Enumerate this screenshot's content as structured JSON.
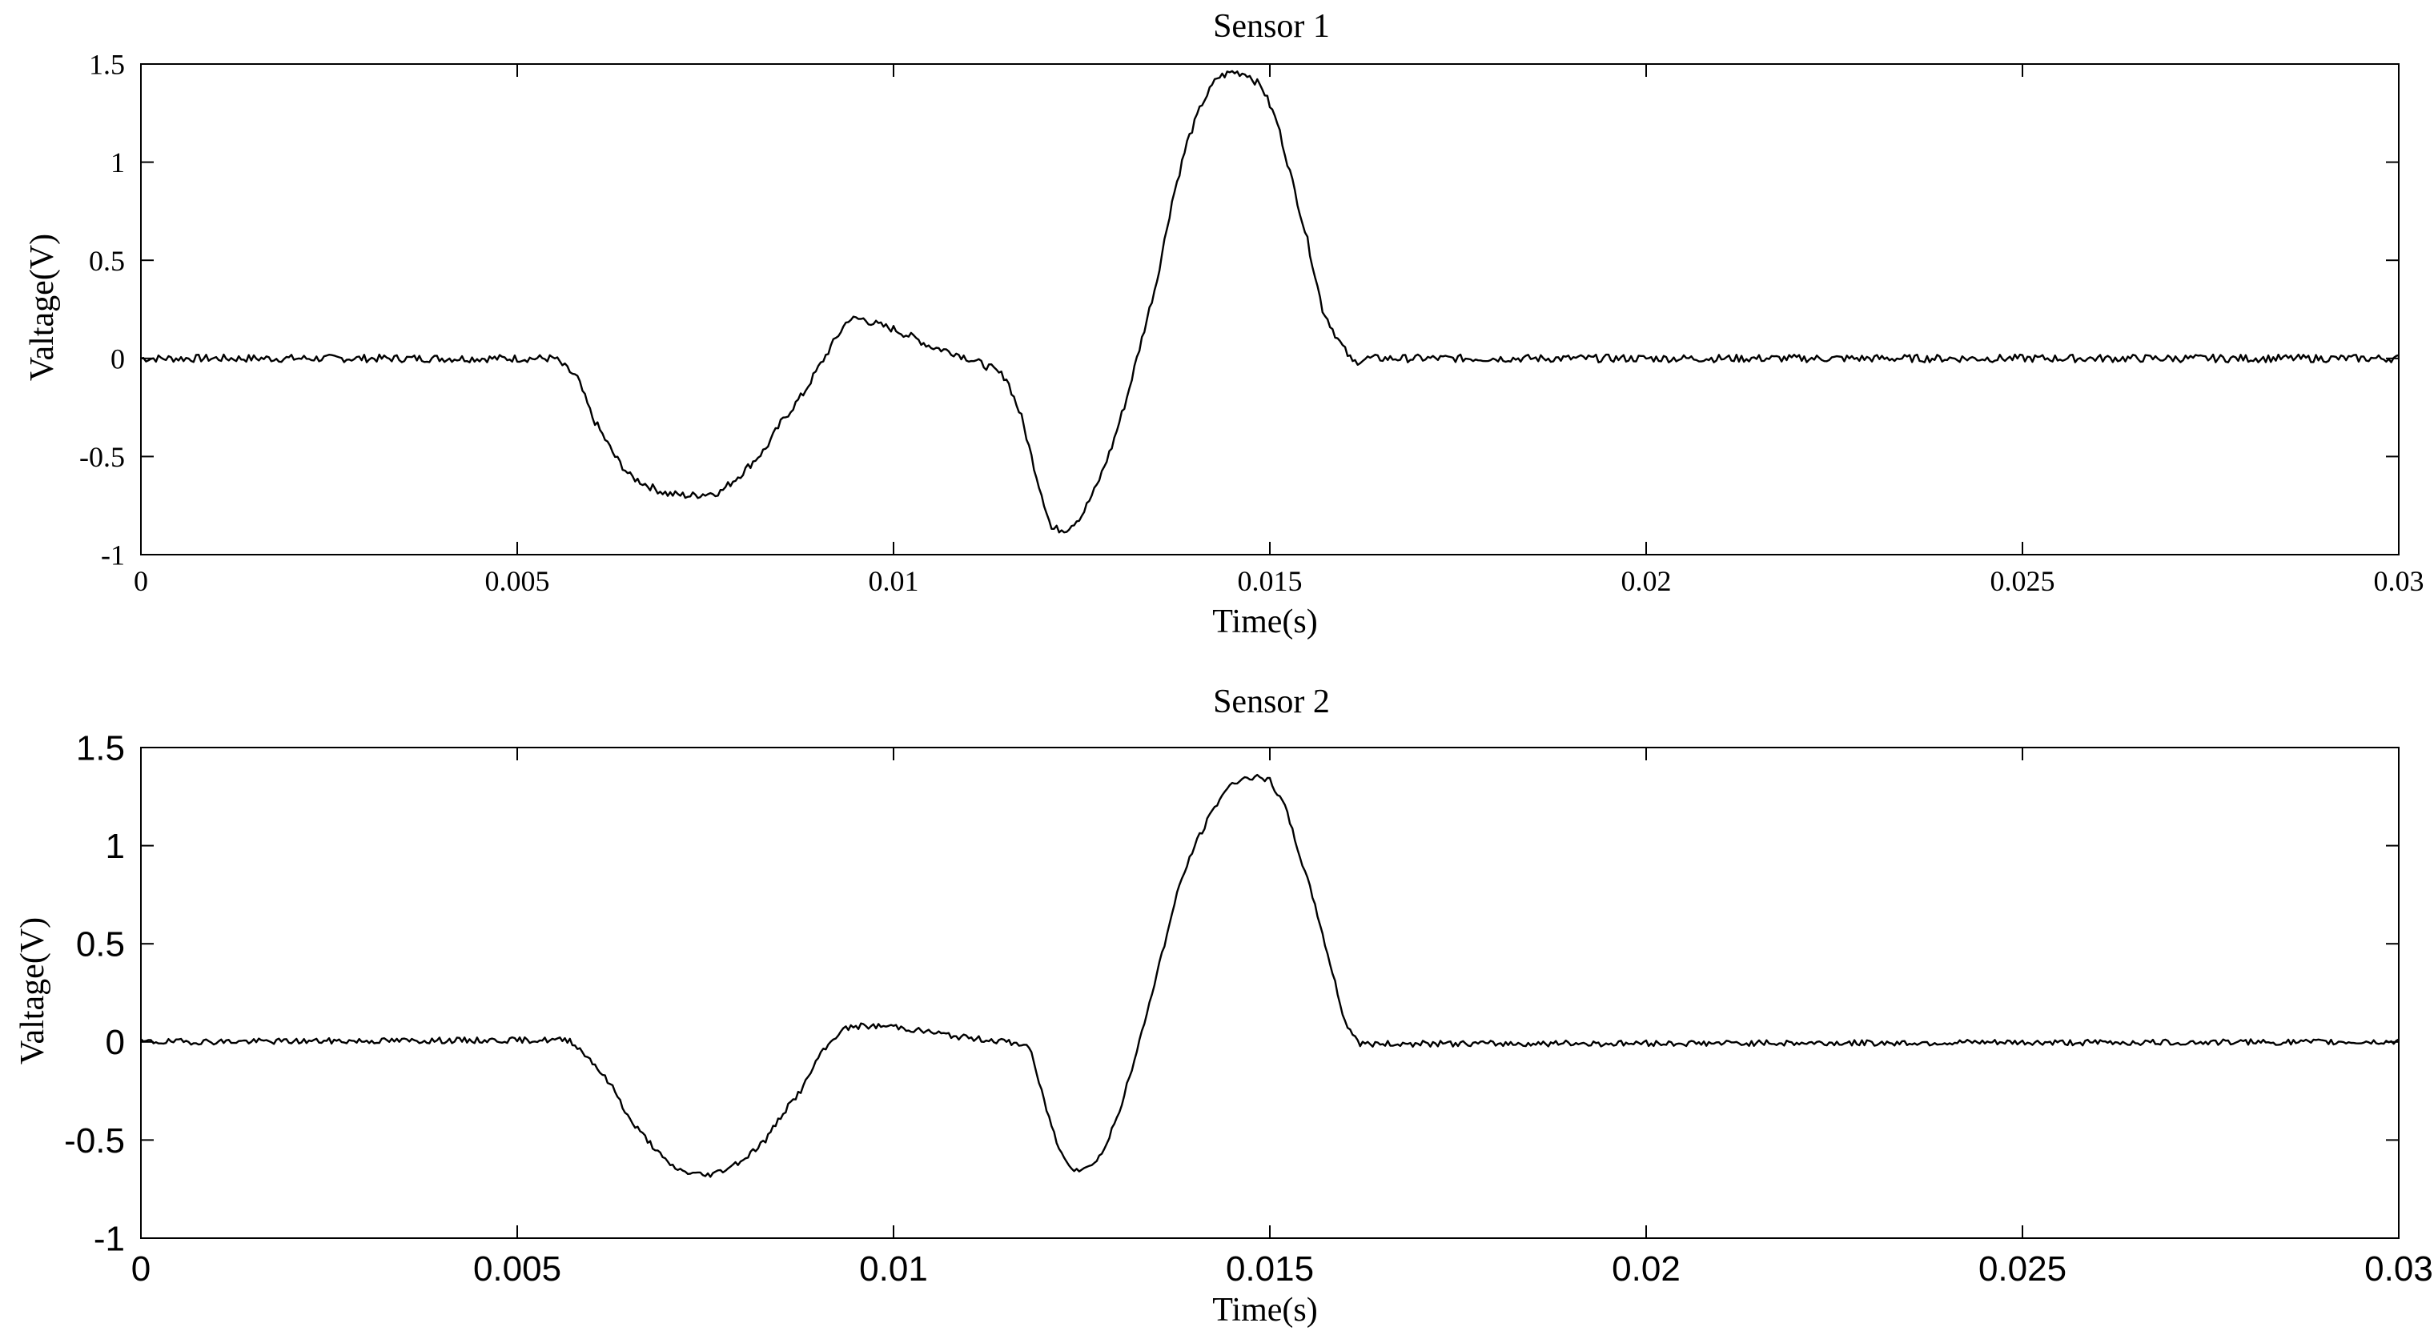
{
  "colors": {
    "line": "#000000",
    "axes": "#000000",
    "background": "#ffffff"
  },
  "chart_data": [
    {
      "type": "line",
      "title": "Sensor 1",
      "xlabel": "Time(s)",
      "ylabel": "Valtage(V)",
      "xlim": [
        0,
        0.03
      ],
      "ylim": [
        -1,
        1.5
      ],
      "xticks": [
        0,
        0.005,
        0.01,
        0.015,
        0.02,
        0.025,
        0.03
      ],
      "xtick_labels": [
        "0",
        "0.005",
        "0.01",
        "0.015",
        "0.02",
        "0.025",
        "0.03"
      ],
      "yticks": [
        -1,
        -0.5,
        0,
        0.5,
        1,
        1.5
      ],
      "ytick_labels": [
        "-1",
        "-0.5",
        "0",
        "0.5",
        "1",
        "1.5"
      ],
      "grid": false,
      "legend": "none",
      "noise_amplitude": 0.02,
      "series": [
        {
          "x": [
            0,
            0.0055,
            0.0058,
            0.006,
            0.0063,
            0.0065,
            0.0068,
            0.007,
            0.0073,
            0.0075,
            0.0077,
            0.008,
            0.0083,
            0.0085,
            0.0088,
            0.009,
            0.0092,
            0.0094,
            0.0096,
            0.0098,
            0.01,
            0.0103,
            0.0105,
            0.0108,
            0.011,
            0.0113,
            0.0115,
            0.0117,
            0.0119,
            0.0121,
            0.0123,
            0.0125,
            0.0127,
            0.0129,
            0.0131,
            0.0133,
            0.0135,
            0.0137,
            0.0139,
            0.0141,
            0.0143,
            0.0145,
            0.0147,
            0.0149,
            0.0151,
            0.0153,
            0.0155,
            0.0157,
            0.0159,
            0.0161,
            0.0163,
            0.03
          ],
          "y": [
            0,
            0,
            -0.1,
            -0.3,
            -0.5,
            -0.6,
            -0.66,
            -0.69,
            -0.7,
            -0.69,
            -0.68,
            -0.58,
            -0.46,
            -0.33,
            -0.18,
            -0.05,
            0.08,
            0.2,
            0.2,
            0.17,
            0.15,
            0.1,
            0.06,
            0.03,
            0,
            -0.05,
            -0.1,
            -0.3,
            -0.6,
            -0.87,
            -0.87,
            -0.8,
            -0.65,
            -0.45,
            -0.2,
            0.1,
            0.4,
            0.8,
            1.1,
            1.3,
            1.43,
            1.46,
            1.45,
            1.38,
            1.2,
            0.9,
            0.6,
            0.25,
            0.1,
            -0.02,
            0,
            0
          ]
        }
      ]
    },
    {
      "type": "line",
      "title": "Sensor 2",
      "xlabel": "Time(s)",
      "ylabel": "Valtage(V)",
      "xlim": [
        0,
        0.03
      ],
      "ylim": [
        -1,
        1.5
      ],
      "xticks": [
        0,
        0.005,
        0.01,
        0.015,
        0.02,
        0.025,
        0.03
      ],
      "xtick_labels": [
        "0",
        "0.005",
        "0.01",
        "0.015",
        "0.02",
        "0.025",
        "0.03"
      ],
      "yticks": [
        -1,
        -0.5,
        0,
        0.5,
        1,
        1.5
      ],
      "ytick_labels": [
        "-1",
        "-0.5",
        "0",
        "0.5",
        "1",
        "1.5"
      ],
      "grid": false,
      "legend": "none",
      "noise_amplitude": 0.015,
      "series": [
        {
          "x": [
            0,
            0.0057,
            0.006,
            0.0063,
            0.0065,
            0.0068,
            0.007,
            0.0072,
            0.0075,
            0.0077,
            0.008,
            0.0083,
            0.0085,
            0.0088,
            0.009,
            0.0093,
            0.0095,
            0.0098,
            0.01,
            0.0103,
            0.0105,
            0.0108,
            0.011,
            0.0113,
            0.0115,
            0.0118,
            0.012,
            0.0122,
            0.0124,
            0.0126,
            0.0128,
            0.013,
            0.0132,
            0.0134,
            0.0136,
            0.0138,
            0.014,
            0.0142,
            0.0144,
            0.0146,
            0.0148,
            0.015,
            0.0152,
            0.0154,
            0.0156,
            0.0158,
            0.016,
            0.0162,
            0.03
          ],
          "y": [
            0,
            0.01,
            -0.1,
            -0.25,
            -0.4,
            -0.53,
            -0.62,
            -0.66,
            -0.68,
            -0.66,
            -0.6,
            -0.5,
            -0.38,
            -0.23,
            -0.08,
            0.06,
            0.08,
            0.08,
            0.08,
            0.06,
            0.05,
            0.03,
            0.02,
            0.01,
            0,
            -0.02,
            -0.3,
            -0.55,
            -0.65,
            -0.64,
            -0.55,
            -0.35,
            -0.1,
            0.2,
            0.5,
            0.8,
            1.0,
            1.15,
            1.28,
            1.34,
            1.35,
            1.33,
            1.2,
            0.95,
            0.7,
            0.4,
            0.1,
            -0.01,
            0
          ]
        }
      ]
    }
  ]
}
